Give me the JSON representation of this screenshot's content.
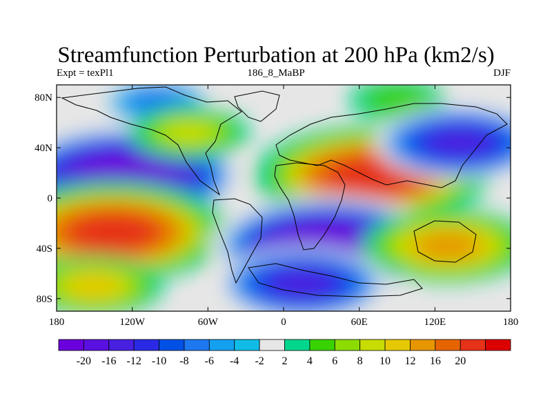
{
  "title": "Streamfunction Perturbation at 200 hPa (km2/s)",
  "subtitle_left": "Expt = texPl1",
  "subtitle_center": "186_8_MaBP",
  "subtitle_right": "DJF",
  "map": {
    "projection": "cylindrical equidistant",
    "lon_range": [
      -180,
      180
    ],
    "lat_range": [
      -90,
      90
    ],
    "lon_ticks": [
      {
        "lon": -180,
        "label": "180"
      },
      {
        "lon": -120,
        "label": "120W"
      },
      {
        "lon": -60,
        "label": "60W"
      },
      {
        "lon": 0,
        "label": "0"
      },
      {
        "lon": 60,
        "label": "60E"
      },
      {
        "lon": 120,
        "label": "120E"
      },
      {
        "lon": 180,
        "label": "180"
      }
    ],
    "lat_ticks": [
      {
        "lat": 80,
        "label": "80N"
      },
      {
        "lat": 40,
        "label": "40N"
      },
      {
        "lat": 0,
        "label": "0"
      },
      {
        "lat": -40,
        "label": "40S"
      },
      {
        "lat": -80,
        "label": "80S"
      }
    ]
  },
  "colorbar": {
    "colors": [
      "#6a00dc",
      "#5a10e0",
      "#4820e0",
      "#2a2ae6",
      "#0050e6",
      "#1e78f0",
      "#14a0f0",
      "#10bce6",
      "#e6e6e6",
      "#00d68c",
      "#38d200",
      "#8cdc00",
      "#c8dc00",
      "#e6c800",
      "#e69600",
      "#e66400",
      "#e63218",
      "#dc0000"
    ],
    "labels": [
      "-20",
      "-16",
      "-12",
      "-10",
      "-8",
      "-6",
      "-4",
      "-2",
      "2",
      "4",
      "6",
      "8",
      "10",
      "12",
      "16",
      "20"
    ]
  },
  "field_features": [
    {
      "name": "N Pacific low",
      "lon": -125,
      "lat": 18,
      "value": -22
    },
    {
      "name": "Eurasia high",
      "lon": 70,
      "lat": 18,
      "value": 22
    },
    {
      "name": "S Pacific high",
      "lon": -135,
      "lat": -27,
      "value": 22
    },
    {
      "name": "S America–Africa low",
      "lon": 35,
      "lat": -38,
      "value": -22
    },
    {
      "name": "Subantarctic low",
      "lon": 15,
      "lat": -68,
      "value": -14
    },
    {
      "name": "Arctic Pacific low",
      "lon": -100,
      "lat": 76,
      "value": -8
    },
    {
      "name": "Arctic Siberia high",
      "lon": 90,
      "lat": 78,
      "value": 5
    },
    {
      "name": "Atlantic high",
      "lon": -75,
      "lat": 52,
      "value": 8
    },
    {
      "name": "N Asia low",
      "lon": 140,
      "lat": 44,
      "value": -14
    },
    {
      "name": "Indian Ocean high",
      "lon": 130,
      "lat": -38,
      "value": 14
    },
    {
      "name": "SE Pacific high",
      "lon": -150,
      "lat": -70,
      "value": 10
    }
  ]
}
